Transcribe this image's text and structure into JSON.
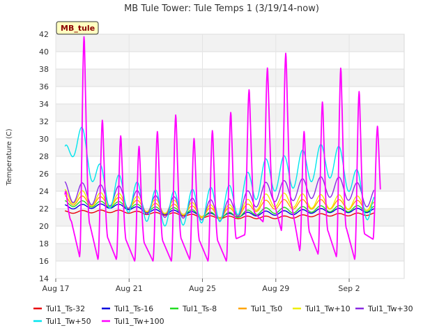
{
  "chart_data": {
    "type": "line",
    "title": "MB Tule Tower: Tule Temps 1 (3/19/14-now)",
    "xlabel": "",
    "ylabel": "Temperature (C)",
    "badge": "MB_tule",
    "ylim": [
      14,
      42
    ],
    "y_ticks": [
      14,
      16,
      18,
      20,
      22,
      24,
      26,
      28,
      30,
      32,
      34,
      36,
      38,
      40,
      42
    ],
    "xlim": [
      "2014-08-17",
      "2014-09-05"
    ],
    "x_ticks": [
      "Aug 17",
      "Aug 21",
      "Aug 25",
      "Aug 29",
      "Sep 2"
    ],
    "x_tick_dates": [
      "2014-08-17",
      "2014-08-21",
      "2014-08-25",
      "2014-08-29",
      "2014-09-02"
    ],
    "grid": true,
    "legend_position": "bottom",
    "series": [
      {
        "name": "Tul1_Ts-32",
        "color": "#e8000b",
        "x": [
          "2014-08-17",
          "2014-08-20",
          "2014-08-23",
          "2014-08-26",
          "2014-08-29",
          "2014-09-01",
          "2014-09-04"
        ],
        "y": [
          21.6,
          21.7,
          21.4,
          21.0,
          21.0,
          21.3,
          21.4
        ]
      },
      {
        "name": "Tul1_Ts-16",
        "color": "#0000dd",
        "x": [
          "2014-08-17",
          "2014-08-20",
          "2014-08-23",
          "2014-08-26",
          "2014-08-29",
          "2014-09-01",
          "2014-09-04"
        ],
        "y": [
          22.2,
          22.3,
          21.6,
          21.2,
          21.5,
          21.8,
          21.8
        ]
      },
      {
        "name": "Tul1_Ts-8",
        "color": "#22dd22",
        "x": [
          "2014-08-17",
          "2014-08-20",
          "2014-08-23",
          "2014-08-26",
          "2014-08-29",
          "2014-09-01",
          "2014-09-04"
        ],
        "y": [
          22.6,
          22.5,
          21.8,
          21.2,
          21.8,
          22.0,
          22.0
        ]
      },
      {
        "name": "Tul1_Ts0",
        "color": "#ffa500",
        "x": [
          "2014-08-17",
          "2014-08-20",
          "2014-08-23",
          "2014-08-26",
          "2014-08-29",
          "2014-09-01",
          "2014-09-04"
        ],
        "y": [
          23.0,
          22.8,
          22.0,
          21.5,
          22.5,
          22.5,
          22.3
        ]
      },
      {
        "name": "Tul1_Tw+10",
        "color": "#eeee00",
        "x": [
          "2014-08-17",
          "2014-08-20",
          "2014-08-23",
          "2014-08-26",
          "2014-08-29",
          "2014-09-01",
          "2014-09-04"
        ],
        "y": [
          23.5,
          23.0,
          22.2,
          21.6,
          23.0,
          22.8,
          22.5
        ]
      },
      {
        "name": "Tul1_Tw+30",
        "color": "#8a2be2",
        "x": [
          "2014-08-17",
          "2014-08-20",
          "2014-08-23",
          "2014-08-26",
          "2014-08-29",
          "2014-09-01",
          "2014-09-04"
        ],
        "y": [
          24.0,
          23.5,
          22.2,
          21.8,
          24.0,
          24.5,
          23.0
        ]
      },
      {
        "name": "Tul1_Tw+50",
        "color": "#00e5ee",
        "x": [
          "2014-08-17",
          "2014-08-18",
          "2014-08-20",
          "2014-08-23",
          "2014-08-26",
          "2014-08-29",
          "2014-09-01",
          "2014-09-04"
        ],
        "y": [
          24.5,
          30.0,
          24.0,
          22.0,
          22.5,
          26.0,
          27.5,
          21.0
        ]
      },
      {
        "name": "Tul1_Tw+100",
        "color": "#ff00ff",
        "x": [
          "2014-08-17",
          "2014-08-18",
          "2014-08-19",
          "2014-08-20",
          "2014-08-21",
          "2014-08-22",
          "2014-08-23",
          "2014-08-24",
          "2014-08-25",
          "2014-08-26",
          "2014-08-27",
          "2014-08-28",
          "2014-08-29",
          "2014-08-30",
          "2014-08-31",
          "2014-09-01",
          "2014-09-02",
          "2014-09-03"
        ],
        "y": [
          24.0,
          41.8,
          32.2,
          30.4,
          29.2,
          30.9,
          32.8,
          30.1,
          31.0,
          33.1,
          35.7,
          38.2,
          39.9,
          30.9,
          34.3,
          38.2,
          35.5,
          31.5
        ],
        "daily_min": [
          20.0,
          16.5,
          16.2,
          16.2,
          16.0,
          16.0,
          16.0,
          16.2,
          16.0,
          16.0,
          19.0,
          20.5,
          19.5,
          17.2,
          16.8,
          16.5,
          16.2,
          18.5
        ]
      }
    ]
  }
}
